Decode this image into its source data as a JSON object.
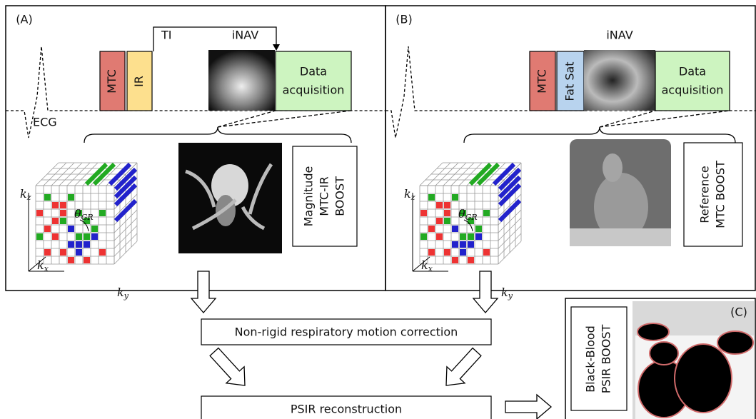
{
  "panels": [
    {
      "label": "(A)",
      "pulses": [
        "MTC",
        "IR"
      ],
      "ti": "TI",
      "inav": "iNAV",
      "acquisition": [
        "Data",
        "acquisition"
      ],
      "ecg": "ECG",
      "image_label": [
        "Magnitude",
        "MTC-IR",
        "BOOST"
      ],
      "axes": {
        "kz": [
          "k",
          "z"
        ],
        "kx": [
          "k",
          "x"
        ],
        "ky": [
          "k",
          "y"
        ],
        "theta": [
          "θ",
          "GR"
        ]
      }
    },
    {
      "label": "(B)",
      "pulses": [
        "MTC",
        "Fat Sat"
      ],
      "inav": "iNAV",
      "acquisition": [
        "Data",
        "acquisition"
      ],
      "image_label": [
        "Reference",
        "MTC BOOST"
      ],
      "axes": {
        "kz": [
          "k",
          "z"
        ],
        "kx": [
          "k",
          "x"
        ],
        "ky": [
          "k",
          "y"
        ],
        "theta": [
          "θ",
          "GR"
        ]
      }
    }
  ],
  "steps": [
    "Non-rigid respiratory motion correction",
    "PSIR reconstruction"
  ],
  "result": {
    "label": "(C)",
    "image_label": [
      "Black-Blood",
      "PSIR BOOST"
    ]
  }
}
